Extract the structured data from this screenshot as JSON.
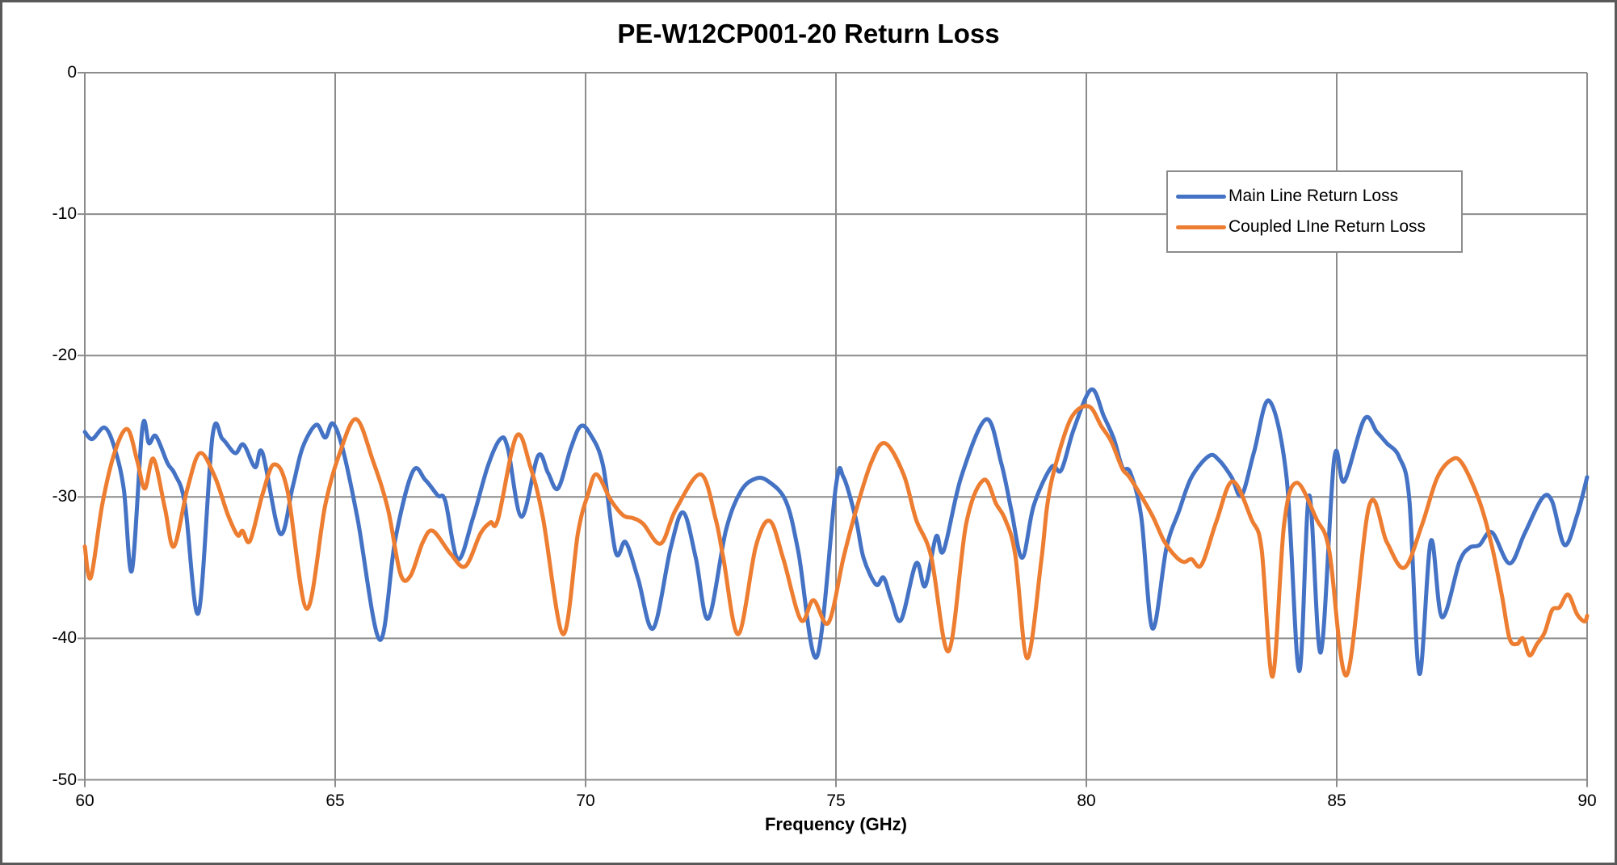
{
  "title": "PE-W12CP001-20 Return Loss",
  "chart_data": {
    "type": "line",
    "title": "PE-W12CP001-20 Return Loss",
    "xlabel": "Frequency (GHz)",
    "ylabel": "",
    "xlim": [
      60,
      90
    ],
    "ylim": [
      -50,
      0
    ],
    "x_ticks": [
      60,
      65,
      70,
      75,
      80,
      85,
      90
    ],
    "y_ticks": [
      0,
      -10,
      -20,
      -30,
      -40,
      -50
    ],
    "grid": true,
    "legend_position": "inside-upper-right",
    "colors": {
      "grid": "#8C8C8C",
      "axis": "#8C8C8C",
      "frame": "#595959"
    },
    "series": [
      {
        "name": "Main Line Return Loss",
        "color": "#4472C4",
        "points": [
          [
            60.0,
            -25.4
          ],
          [
            60.15,
            -25.9
          ],
          [
            60.4,
            -25.1
          ],
          [
            60.6,
            -26.6
          ],
          [
            60.78,
            -29.5
          ],
          [
            60.94,
            -35.2
          ],
          [
            61.15,
            -25.1
          ],
          [
            61.28,
            -26.2
          ],
          [
            61.42,
            -25.7
          ],
          [
            61.65,
            -27.6
          ],
          [
            61.8,
            -28.4
          ],
          [
            62.0,
            -30.5
          ],
          [
            62.27,
            -38.2
          ],
          [
            62.55,
            -25.7
          ],
          [
            62.75,
            -25.9
          ],
          [
            63.0,
            -26.9
          ],
          [
            63.17,
            -26.3
          ],
          [
            63.4,
            -27.9
          ],
          [
            63.55,
            -26.9
          ],
          [
            63.9,
            -32.6
          ],
          [
            64.15,
            -29.3
          ],
          [
            64.35,
            -26.5
          ],
          [
            64.62,
            -24.9
          ],
          [
            64.8,
            -25.8
          ],
          [
            64.95,
            -24.8
          ],
          [
            65.15,
            -26.6
          ],
          [
            65.45,
            -31.6
          ],
          [
            65.89,
            -40.1
          ],
          [
            66.2,
            -33.0
          ],
          [
            66.55,
            -28.2
          ],
          [
            66.8,
            -28.8
          ],
          [
            67.05,
            -29.9
          ],
          [
            67.2,
            -30.3
          ],
          [
            67.45,
            -34.4
          ],
          [
            67.75,
            -31.5
          ],
          [
            68.05,
            -27.8
          ],
          [
            68.3,
            -25.9
          ],
          [
            68.45,
            -26.6
          ],
          [
            68.72,
            -31.4
          ],
          [
            69.05,
            -27.1
          ],
          [
            69.25,
            -28.3
          ],
          [
            69.45,
            -29.4
          ],
          [
            69.7,
            -26.6
          ],
          [
            69.9,
            -25.0
          ],
          [
            70.1,
            -25.6
          ],
          [
            70.35,
            -27.8
          ],
          [
            70.6,
            -33.9
          ],
          [
            70.8,
            -33.2
          ],
          [
            71.05,
            -35.8
          ],
          [
            71.35,
            -39.3
          ],
          [
            71.7,
            -33.6
          ],
          [
            71.95,
            -31.1
          ],
          [
            72.2,
            -34.3
          ],
          [
            72.45,
            -38.6
          ],
          [
            72.8,
            -32.4
          ],
          [
            73.1,
            -29.6
          ],
          [
            73.4,
            -28.7
          ],
          [
            73.65,
            -28.9
          ],
          [
            74.0,
            -30.3
          ],
          [
            74.25,
            -33.9
          ],
          [
            74.62,
            -41.3
          ],
          [
            75.0,
            -29.2
          ],
          [
            75.15,
            -28.6
          ],
          [
            75.4,
            -31.6
          ],
          [
            75.55,
            -34.3
          ],
          [
            75.8,
            -36.2
          ],
          [
            75.95,
            -35.7
          ],
          [
            76.1,
            -37.2
          ],
          [
            76.3,
            -38.7
          ],
          [
            76.6,
            -34.7
          ],
          [
            76.78,
            -36.3
          ],
          [
            77.0,
            -32.8
          ],
          [
            77.15,
            -33.8
          ],
          [
            77.5,
            -28.6
          ],
          [
            78.0,
            -24.5
          ],
          [
            78.3,
            -27.6
          ],
          [
            78.5,
            -30.9
          ],
          [
            78.72,
            -34.3
          ],
          [
            78.95,
            -30.6
          ],
          [
            79.3,
            -27.9
          ],
          [
            79.5,
            -28.1
          ],
          [
            79.75,
            -25.2
          ],
          [
            80.1,
            -22.4
          ],
          [
            80.35,
            -24.3
          ],
          [
            80.55,
            -25.9
          ],
          [
            80.72,
            -27.9
          ],
          [
            80.88,
            -28.3
          ],
          [
            81.1,
            -31.5
          ],
          [
            81.32,
            -39.3
          ],
          [
            81.6,
            -33.6
          ],
          [
            81.85,
            -31.0
          ],
          [
            82.1,
            -28.6
          ],
          [
            82.45,
            -27.1
          ],
          [
            82.65,
            -27.4
          ],
          [
            82.9,
            -28.6
          ],
          [
            83.1,
            -29.9
          ],
          [
            83.35,
            -26.8
          ],
          [
            83.65,
            -23.2
          ],
          [
            84.0,
            -28.7
          ],
          [
            84.25,
            -42.3
          ],
          [
            84.45,
            -29.9
          ],
          [
            84.68,
            -41.0
          ],
          [
            84.95,
            -27.3
          ],
          [
            85.15,
            -28.9
          ],
          [
            85.55,
            -24.5
          ],
          [
            85.8,
            -25.4
          ],
          [
            86.0,
            -26.2
          ],
          [
            86.25,
            -27.2
          ],
          [
            86.45,
            -30.2
          ],
          [
            86.65,
            -42.5
          ],
          [
            86.88,
            -33.1
          ],
          [
            87.1,
            -38.5
          ],
          [
            87.45,
            -34.6
          ],
          [
            87.65,
            -33.6
          ],
          [
            87.85,
            -33.4
          ],
          [
            88.1,
            -32.5
          ],
          [
            88.45,
            -34.7
          ],
          [
            88.75,
            -32.6
          ],
          [
            89.1,
            -30.1
          ],
          [
            89.3,
            -30.3
          ],
          [
            89.55,
            -33.4
          ],
          [
            89.8,
            -31.3
          ],
          [
            90.0,
            -28.6
          ]
        ]
      },
      {
        "name": "Coupled LIne Return Loss",
        "color": "#ED7D31",
        "points": [
          [
            60.0,
            -33.5
          ],
          [
            60.12,
            -35.7
          ],
          [
            60.35,
            -30.5
          ],
          [
            60.6,
            -26.8
          ],
          [
            60.85,
            -25.2
          ],
          [
            61.05,
            -27.5
          ],
          [
            61.2,
            -29.4
          ],
          [
            61.37,
            -27.3
          ],
          [
            61.6,
            -30.8
          ],
          [
            61.78,
            -33.5
          ],
          [
            62.05,
            -29.4
          ],
          [
            62.3,
            -26.9
          ],
          [
            62.6,
            -28.6
          ],
          [
            62.85,
            -31.2
          ],
          [
            63.05,
            -32.7
          ],
          [
            63.15,
            -32.4
          ],
          [
            63.3,
            -33.1
          ],
          [
            63.55,
            -29.8
          ],
          [
            63.78,
            -27.7
          ],
          [
            64.05,
            -29.6
          ],
          [
            64.43,
            -37.9
          ],
          [
            64.8,
            -30.6
          ],
          [
            65.1,
            -26.8
          ],
          [
            65.42,
            -24.5
          ],
          [
            65.75,
            -27.4
          ],
          [
            66.05,
            -30.8
          ],
          [
            66.3,
            -35.4
          ],
          [
            66.5,
            -35.6
          ],
          [
            66.75,
            -33.2
          ],
          [
            66.95,
            -32.4
          ],
          [
            67.3,
            -34.0
          ],
          [
            67.6,
            -34.9
          ],
          [
            67.9,
            -32.6
          ],
          [
            68.1,
            -31.8
          ],
          [
            68.25,
            -31.6
          ],
          [
            68.62,
            -25.7
          ],
          [
            68.9,
            -27.9
          ],
          [
            69.15,
            -31.5
          ],
          [
            69.55,
            -39.7
          ],
          [
            69.85,
            -32.5
          ],
          [
            70.05,
            -29.8
          ],
          [
            70.22,
            -28.4
          ],
          [
            70.5,
            -30.2
          ],
          [
            70.75,
            -31.3
          ],
          [
            70.95,
            -31.5
          ],
          [
            71.15,
            -31.9
          ],
          [
            71.5,
            -33.3
          ],
          [
            71.8,
            -30.9
          ],
          [
            72.3,
            -28.4
          ],
          [
            72.6,
            -31.6
          ],
          [
            72.75,
            -34.3
          ],
          [
            73.05,
            -39.7
          ],
          [
            73.4,
            -33.5
          ],
          [
            73.68,
            -31.7
          ],
          [
            73.95,
            -34.4
          ],
          [
            74.3,
            -38.7
          ],
          [
            74.55,
            -37.3
          ],
          [
            74.85,
            -38.9
          ],
          [
            75.15,
            -34.3
          ],
          [
            75.38,
            -31.2
          ],
          [
            75.7,
            -27.6
          ],
          [
            75.98,
            -26.2
          ],
          [
            76.35,
            -28.4
          ],
          [
            76.6,
            -31.6
          ],
          [
            76.9,
            -34.2
          ],
          [
            77.25,
            -40.9
          ],
          [
            77.6,
            -31.9
          ],
          [
            77.95,
            -28.8
          ],
          [
            78.2,
            -30.5
          ],
          [
            78.38,
            -31.6
          ],
          [
            78.58,
            -34.1
          ],
          [
            78.82,
            -41.4
          ],
          [
            79.1,
            -34.5
          ],
          [
            79.22,
            -30.6
          ],
          [
            79.38,
            -27.8
          ],
          [
            79.7,
            -24.4
          ],
          [
            80.05,
            -23.6
          ],
          [
            80.3,
            -25.0
          ],
          [
            80.5,
            -26.1
          ],
          [
            80.72,
            -28.0
          ],
          [
            80.88,
            -28.7
          ],
          [
            81.3,
            -31.2
          ],
          [
            81.55,
            -33.1
          ],
          [
            81.78,
            -34.2
          ],
          [
            81.95,
            -34.6
          ],
          [
            82.1,
            -34.4
          ],
          [
            82.3,
            -34.8
          ],
          [
            82.6,
            -31.7
          ],
          [
            82.92,
            -28.9
          ],
          [
            83.3,
            -31.6
          ],
          [
            83.5,
            -33.7
          ],
          [
            83.72,
            -42.7
          ],
          [
            83.95,
            -31.9
          ],
          [
            84.2,
            -29.0
          ],
          [
            84.6,
            -31.6
          ],
          [
            84.85,
            -33.8
          ],
          [
            85.2,
            -42.6
          ],
          [
            85.65,
            -30.6
          ],
          [
            86.0,
            -33.2
          ],
          [
            86.35,
            -35.0
          ],
          [
            86.7,
            -32.0
          ],
          [
            87.0,
            -28.7
          ],
          [
            87.28,
            -27.4
          ],
          [
            87.5,
            -27.6
          ],
          [
            87.85,
            -30.3
          ],
          [
            88.1,
            -33.5
          ],
          [
            88.3,
            -37.0
          ],
          [
            88.45,
            -40.0
          ],
          [
            88.6,
            -40.4
          ],
          [
            88.72,
            -40.0
          ],
          [
            88.85,
            -41.2
          ],
          [
            89.0,
            -40.4
          ],
          [
            89.15,
            -39.6
          ],
          [
            89.3,
            -38.0
          ],
          [
            89.45,
            -37.8
          ],
          [
            89.62,
            -36.9
          ],
          [
            89.8,
            -38.3
          ],
          [
            89.95,
            -38.8
          ],
          [
            90.0,
            -38.4
          ]
        ]
      }
    ]
  }
}
